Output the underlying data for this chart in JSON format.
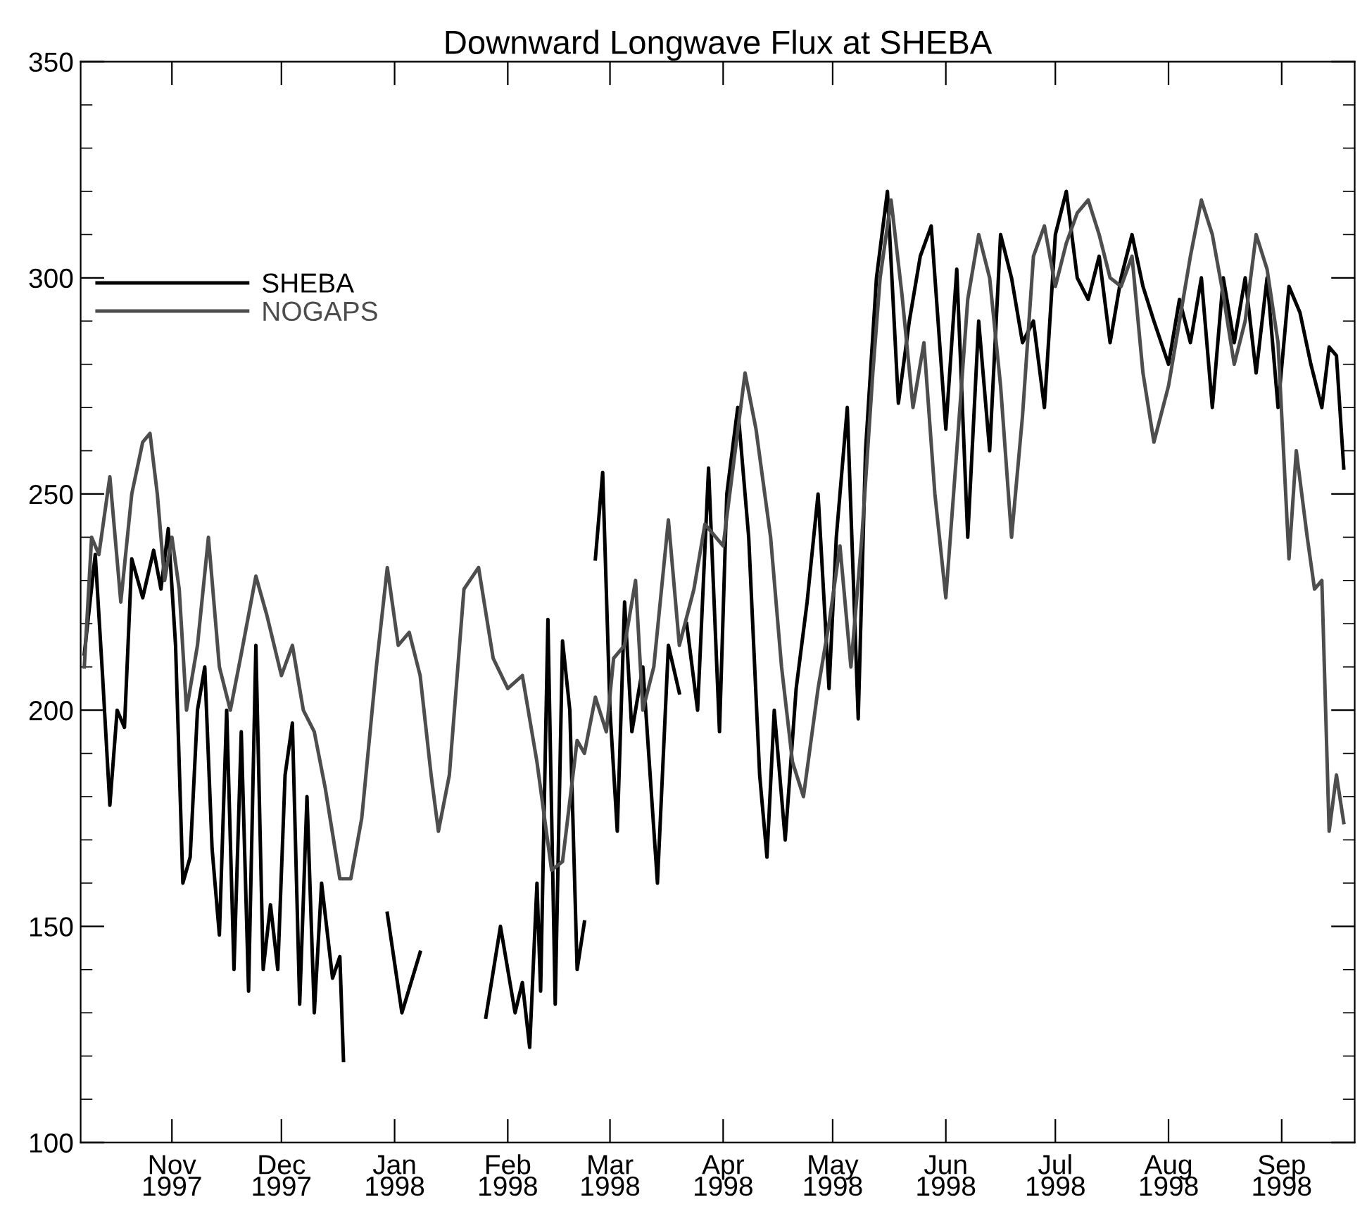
{
  "chart_data": {
    "type": "line",
    "title": "Downward Longwave Flux at SHEBA",
    "xlim": [
      "1997-10-07",
      "1998-09-21"
    ],
    "ylim": [
      100,
      350
    ],
    "yticks": [
      100,
      150,
      200,
      250,
      300,
      350
    ],
    "xticks": [
      {
        "value": "1997-11-01",
        "label": "Nov\n1997"
      },
      {
        "value": "1997-12-01",
        "label": "Dec\n1997"
      },
      {
        "value": "1998-01-01",
        "label": "Jan\n1998"
      },
      {
        "value": "1998-02-01",
        "label": "Feb\n1998"
      },
      {
        "value": "1998-03-01",
        "label": "Mar\n1998"
      },
      {
        "value": "1998-04-01",
        "label": "Apr\n1998"
      },
      {
        "value": "1998-05-01",
        "label": "May\n1998"
      },
      {
        "value": "1998-06-01",
        "label": "Jun\n1998"
      },
      {
        "value": "1998-07-01",
        "label": "Jul\n1998"
      },
      {
        "value": "1998-08-01",
        "label": "Aug\n1998"
      },
      {
        "value": "1998-09-01",
        "label": "Sep\n1998"
      }
    ],
    "grid": false,
    "legend": "top left",
    "line_style": "solid",
    "marker": "none",
    "series": [
      {
        "name": "SHEBA",
        "color": "#000000",
        "x": [
          "1997-10-08",
          "1997-10-11",
          "1997-10-13",
          "1997-10-15",
          "1997-10-17",
          "1997-10-19",
          "1997-10-21",
          "1997-10-24",
          "1997-10-27",
          "1997-10-29",
          "1997-10-31",
          "1997-11-02",
          "1997-11-04",
          "1997-11-06",
          "1997-11-08",
          "1997-11-10",
          "1997-11-12",
          "1997-11-14",
          "1997-11-16",
          "1997-11-18",
          "1997-11-20",
          "1997-11-22",
          "1997-11-24",
          "1997-11-26",
          "1997-11-28",
          "1997-11-30",
          "1997-12-02",
          "1997-12-04",
          "1997-12-06",
          "1997-12-08",
          "1997-12-10",
          "1997-12-12",
          "1997-12-15",
          "1997-12-17",
          "1997-12-18",
          "1997-12-24",
          "1997-12-30",
          "1998-01-03",
          "1998-01-08",
          "1998-01-18",
          "1998-01-26",
          "1998-01-30",
          "1998-02-03",
          "1998-02-05",
          "1998-02-07",
          "1998-02-09",
          "1998-02-10",
          "1998-02-12",
          "1998-02-14",
          "1998-02-16",
          "1998-02-18",
          "1998-02-20",
          "1998-02-22",
          "1998-02-23",
          "1998-02-25",
          "1998-02-27",
          "1998-03-01",
          "1998-03-03",
          "1998-03-05",
          "1998-03-07",
          "1998-03-10",
          "1998-03-14",
          "1998-03-17",
          "1998-03-20",
          "1998-03-21",
          "1998-03-22",
          "1998-03-25",
          "1998-03-28",
          "1998-03-31",
          "1998-04-02",
          "1998-04-05",
          "1998-04-08",
          "1998-04-11",
          "1998-04-13",
          "1998-04-15",
          "1998-04-18",
          "1998-04-21",
          "1998-04-24",
          "1998-04-27",
          "1998-04-30",
          "1998-05-02",
          "1998-05-05",
          "1998-05-08",
          "1998-05-10",
          "1998-05-13",
          "1998-05-16",
          "1998-05-19",
          "1998-05-22",
          "1998-05-25",
          "1998-05-28",
          "1998-06-01",
          "1998-06-04",
          "1998-06-07",
          "1998-06-10",
          "1998-06-13",
          "1998-06-16",
          "1998-06-19",
          "1998-06-22",
          "1998-06-25",
          "1998-06-28",
          "1998-07-01",
          "1998-07-04",
          "1998-07-07",
          "1998-07-10",
          "1998-07-13",
          "1998-07-16",
          "1998-07-19",
          "1998-07-22",
          "1998-07-25",
          "1998-07-28",
          "1998-08-01",
          "1998-08-04",
          "1998-08-07",
          "1998-08-10",
          "1998-08-13",
          "1998-08-16",
          "1998-08-19",
          "1998-08-22",
          "1998-08-25",
          "1998-08-28",
          "1998-08-31",
          "1998-09-03",
          "1998-09-06",
          "1998-09-09",
          "1998-09-12",
          "1998-09-14",
          "1998-09-16",
          "1998-09-18"
        ],
        "values": [
          213,
          236,
          208,
          178,
          200,
          196,
          235,
          226,
          237,
          228,
          242,
          215,
          160,
          166,
          200,
          210,
          168,
          148,
          200,
          140,
          195,
          135,
          215,
          140,
          155,
          140,
          185,
          197,
          132,
          180,
          130,
          160,
          138,
          143,
          119,
          null,
          153,
          130,
          144,
          null,
          129,
          150,
          130,
          137,
          122,
          160,
          135,
          221,
          132,
          216,
          200,
          140,
          151,
          null,
          235,
          255,
          200,
          172,
          225,
          195,
          210,
          160,
          215,
          204,
          null,
          220,
          200,
          256,
          195,
          250,
          270,
          240,
          185,
          166,
          200,
          170,
          205,
          225,
          250,
          205,
          240,
          270,
          198,
          260,
          300,
          320,
          271,
          290,
          305,
          312,
          265,
          302,
          240,
          290,
          260,
          310,
          300,
          285,
          290,
          270,
          310,
          320,
          300,
          295,
          305,
          285,
          300,
          310,
          298,
          290,
          280,
          295,
          285,
          300,
          270,
          300,
          285,
          300,
          278,
          300,
          270,
          298,
          292,
          280,
          270,
          284,
          282,
          256
        ]
      },
      {
        "name": "NOGAPS",
        "color": "#4d4d4d",
        "x": [
          "1997-10-08",
          "1997-10-10",
          "1997-10-12",
          "1997-10-15",
          "1997-10-18",
          "1997-10-21",
          "1997-10-24",
          "1997-10-26",
          "1997-10-28",
          "1997-10-30",
          "1997-11-01",
          "1997-11-03",
          "1997-11-05",
          "1997-11-08",
          "1997-11-11",
          "1997-11-14",
          "1997-11-17",
          "1997-11-20",
          "1997-11-24",
          "1997-11-27",
          "1997-12-01",
          "1997-12-04",
          "1997-12-07",
          "1997-12-10",
          "1997-12-13",
          "1997-12-17",
          "1997-12-20",
          "1997-12-23",
          "1997-12-27",
          "1997-12-30",
          "1998-01-02",
          "1998-01-05",
          "1998-01-08",
          "1998-01-11",
          "1998-01-13",
          "1998-01-16",
          "1998-01-20",
          "1998-01-24",
          "1998-01-28",
          "1998-02-01",
          "1998-02-05",
          "1998-02-09",
          "1998-02-13",
          "1998-02-16",
          "1998-02-20",
          "1998-02-22",
          "1998-02-25",
          "1998-02-28",
          "1998-03-02",
          "1998-03-05",
          "1998-03-08",
          "1998-03-10",
          "1998-03-13",
          "1998-03-17",
          "1998-03-20",
          "1998-03-24",
          "1998-03-27",
          "1998-04-01",
          "1998-04-04",
          "1998-04-07",
          "1998-04-10",
          "1998-04-14",
          "1998-04-17",
          "1998-04-20",
          "1998-04-23",
          "1998-04-27",
          "1998-04-30",
          "1998-05-03",
          "1998-05-06",
          "1998-05-09",
          "1998-05-12",
          "1998-05-14",
          "1998-05-17",
          "1998-05-20",
          "1998-05-23",
          "1998-05-26",
          "1998-05-29",
          "1998-06-01",
          "1998-06-04",
          "1998-06-07",
          "1998-06-10",
          "1998-06-13",
          "1998-06-16",
          "1998-06-19",
          "1998-06-22",
          "1998-06-25",
          "1998-06-28",
          "1998-07-01",
          "1998-07-04",
          "1998-07-07",
          "1998-07-10",
          "1998-07-13",
          "1998-07-16",
          "1998-07-19",
          "1998-07-22",
          "1998-07-25",
          "1998-07-28",
          "1998-08-01",
          "1998-08-04",
          "1998-08-07",
          "1998-08-10",
          "1998-08-13",
          "1998-08-16",
          "1998-08-19",
          "1998-08-22",
          "1998-08-25",
          "1998-08-28",
          "1998-08-31",
          "1998-09-03",
          "1998-09-05",
          "1998-09-08",
          "1998-09-10",
          "1998-09-12",
          "1998-09-14",
          "1998-09-16",
          "1998-09-18"
        ],
        "values": [
          210,
          240,
          236,
          254,
          225,
          250,
          262,
          264,
          250,
          230,
          240,
          228,
          200,
          215,
          240,
          210,
          200,
          213,
          231,
          222,
          208,
          215,
          200,
          195,
          182,
          161,
          161,
          175,
          210,
          233,
          215,
          218,
          208,
          185,
          172,
          185,
          228,
          233,
          212,
          205,
          208,
          188,
          163,
          165,
          193,
          190,
          203,
          195,
          212,
          215,
          230,
          200,
          210,
          244,
          215,
          228,
          243,
          238,
          258,
          278,
          265,
          240,
          210,
          188,
          180,
          205,
          220,
          238,
          210,
          240,
          278,
          300,
          318,
          296,
          270,
          285,
          250,
          226,
          260,
          295,
          310,
          300,
          275,
          240,
          268,
          305,
          312,
          298,
          308,
          315,
          318,
          310,
          300,
          298,
          305,
          278,
          262,
          275,
          290,
          305,
          318,
          310,
          296,
          280,
          290,
          310,
          302,
          285,
          235,
          260,
          240,
          228,
          230,
          172,
          185,
          174
        ]
      }
    ]
  }
}
